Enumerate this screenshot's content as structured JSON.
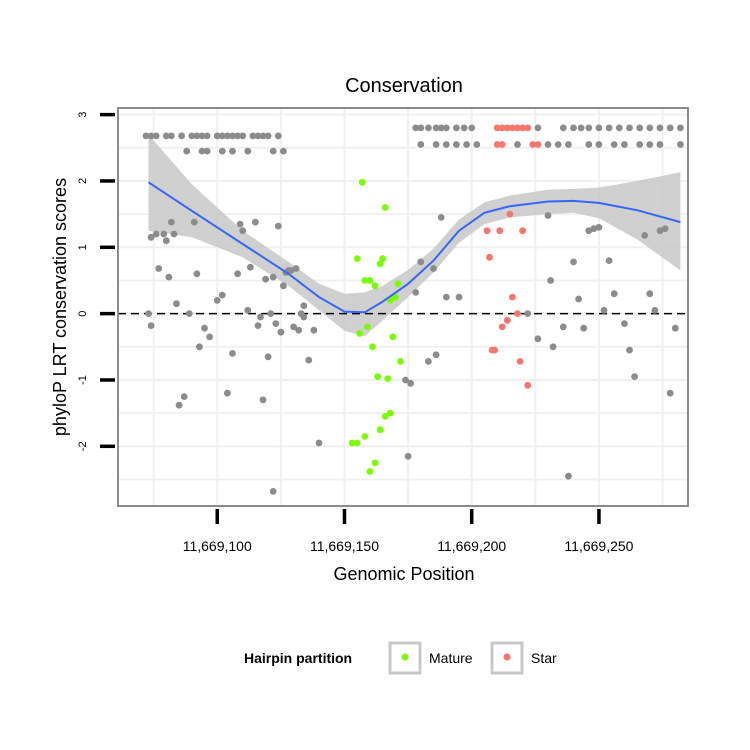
{
  "chart_data": {
    "type": "scatter",
    "title": "Conservation",
    "xlabel": "Genomic Position",
    "ylabel": "phyloP LRT conservation scores",
    "xlim": [
      11669061,
      11669285
    ],
    "ylim": [
      -2.9,
      3.1
    ],
    "x_ticks": [
      11669100,
      11669150,
      11669200,
      11669250
    ],
    "x_tick_labels": [
      "11,669,100",
      "11,669,150",
      "11,669,200",
      "11,669,250"
    ],
    "y_ticks": [
      -2,
      -1,
      0,
      1,
      2,
      3
    ],
    "y_tick_labels": [
      "-2",
      "-1",
      "0",
      "1",
      "2",
      "3"
    ],
    "reference_line": {
      "y": 0,
      "style": "dashed"
    },
    "legend": {
      "title": "Hairpin partition",
      "position": "bottom",
      "entries": [
        {
          "label": "Mature",
          "color": "#7cfc00"
        },
        {
          "label": "Star",
          "color": "#f8766d"
        }
      ]
    },
    "colors": {
      "other": "#8c8c8c",
      "mature": "#7cfc00",
      "star": "#f8766d",
      "smooth_line": "#3366ff",
      "confidence_band": "#c8c8c8",
      "panel_border": "#8c8c8c"
    },
    "smooth": {
      "x": [
        11669073,
        11669090,
        11669110,
        11669128,
        11669140,
        11669150,
        11669158,
        11669165,
        11669175,
        11669185,
        11669195,
        11669205,
        11669215,
        11669230,
        11669240,
        11669250,
        11669265,
        11669282
      ],
      "y": [
        1.98,
        1.55,
        1.05,
        0.6,
        0.25,
        0.03,
        0.02,
        0.18,
        0.45,
        0.8,
        1.25,
        1.52,
        1.62,
        1.69,
        1.7,
        1.67,
        1.56,
        1.38
      ],
      "upper": [
        2.7,
        1.95,
        1.25,
        0.78,
        0.45,
        0.3,
        0.32,
        0.42,
        0.66,
        0.98,
        1.42,
        1.68,
        1.78,
        1.87,
        1.88,
        1.9,
        2.0,
        2.13
      ],
      "lower": [
        1.25,
        1.15,
        0.85,
        0.42,
        0.05,
        -0.26,
        -0.34,
        -0.1,
        0.25,
        0.62,
        1.07,
        1.35,
        1.45,
        1.5,
        1.52,
        1.44,
        1.12,
        0.65
      ]
    },
    "series": [
      {
        "name": "Other",
        "points": [
          [
            11669072,
            2.68
          ],
          [
            11669074,
            2.68
          ],
          [
            11669076,
            2.68
          ],
          [
            11669080,
            2.68
          ],
          [
            11669082,
            2.68
          ],
          [
            11669086,
            2.68
          ],
          [
            11669090,
            2.68
          ],
          [
            11669092,
            2.68
          ],
          [
            11669094,
            2.68
          ],
          [
            11669096,
            2.68
          ],
          [
            11669100,
            2.68
          ],
          [
            11669102,
            2.68
          ],
          [
            11669104,
            2.68
          ],
          [
            11669106,
            2.68
          ],
          [
            11669108,
            2.68
          ],
          [
            11669110,
            2.68
          ],
          [
            11669114,
            2.68
          ],
          [
            11669116,
            2.68
          ],
          [
            11669118,
            2.68
          ],
          [
            11669120,
            2.68
          ],
          [
            11669124,
            2.68
          ],
          [
            11669088,
            2.45
          ],
          [
            11669094,
            2.45
          ],
          [
            11669096,
            2.45
          ],
          [
            11669102,
            2.45
          ],
          [
            11669106,
            2.45
          ],
          [
            11669112,
            2.45
          ],
          [
            11669122,
            2.45
          ],
          [
            11669126,
            2.45
          ],
          [
            11669073,
            0.0
          ],
          [
            11669074,
            -0.18
          ],
          [
            11669074,
            1.15
          ],
          [
            11669076,
            1.2
          ],
          [
            11669077,
            0.68
          ],
          [
            11669079,
            1.2
          ],
          [
            11669080,
            1.1
          ],
          [
            11669081,
            0.55
          ],
          [
            11669082,
            1.38
          ],
          [
            11669083,
            1.2
          ],
          [
            11669084,
            0.15
          ],
          [
            11669085,
            -1.38
          ],
          [
            11669087,
            -1.25
          ],
          [
            11669089,
            0.0
          ],
          [
            11669091,
            1.38
          ],
          [
            11669092,
            0.6
          ],
          [
            11669093,
            -0.5
          ],
          [
            11669095,
            -0.22
          ],
          [
            11669097,
            -0.35
          ],
          [
            11669100,
            0.2
          ],
          [
            11669102,
            0.28
          ],
          [
            11669104,
            -1.2
          ],
          [
            11669106,
            -0.6
          ],
          [
            11669108,
            0.6
          ],
          [
            11669109,
            1.35
          ],
          [
            11669110,
            1.25
          ],
          [
            11669112,
            0.05
          ],
          [
            11669113,
            0.7
          ],
          [
            11669115,
            1.38
          ],
          [
            11669116,
            -0.18
          ],
          [
            11669117,
            -0.05
          ],
          [
            11669118,
            -1.3
          ],
          [
            11669119,
            0.52
          ],
          [
            11669120,
            -0.65
          ],
          [
            11669121,
            0.0
          ],
          [
            11669122,
            0.55
          ],
          [
            11669123,
            -0.15
          ],
          [
            11669124,
            1.32
          ],
          [
            11669125,
            -0.28
          ],
          [
            11669126,
            0.42
          ],
          [
            11669127,
            0.62
          ],
          [
            11669128,
            0.65
          ],
          [
            11669129,
            0.65
          ],
          [
            11669130,
            -0.2
          ],
          [
            11669131,
            0.68
          ],
          [
            11669132,
            -0.25
          ],
          [
            11669133,
            0.0
          ],
          [
            11669134,
            -0.05
          ],
          [
            11669136,
            -0.7
          ],
          [
            11669138,
            -0.25
          ],
          [
            11669140,
            -1.95
          ],
          [
            11669122,
            -2.68
          ],
          [
            11669134,
            0.12
          ],
          [
            11669174,
            -1.0
          ],
          [
            11669175,
            -2.15
          ],
          [
            11669176,
            -1.05
          ],
          [
            11669178,
            0.32
          ],
          [
            11669180,
            0.78
          ],
          [
            11669183,
            -0.72
          ],
          [
            11669185,
            0.68
          ],
          [
            11669186,
            -0.62
          ],
          [
            11669188,
            1.45
          ],
          [
            11669190,
            0.25
          ],
          [
            11669195,
            0.25
          ],
          [
            11669222,
            0.0
          ],
          [
            11669226,
            -0.38
          ],
          [
            11669230,
            1.48
          ],
          [
            11669231,
            0.5
          ],
          [
            11669232,
            -0.5
          ],
          [
            11669236,
            -0.2
          ],
          [
            11669238,
            -2.45
          ],
          [
            11669240,
            0.78
          ],
          [
            11669242,
            0.22
          ],
          [
            11669244,
            -0.22
          ],
          [
            11669246,
            1.25
          ],
          [
            11669248,
            1.28
          ],
          [
            11669250,
            1.3
          ],
          [
            11669252,
            0.05
          ],
          [
            11669254,
            0.8
          ],
          [
            11669256,
            0.3
          ],
          [
            11669260,
            -0.15
          ],
          [
            11669262,
            -0.55
          ],
          [
            11669264,
            -0.95
          ],
          [
            11669268,
            1.18
          ],
          [
            11669270,
            0.3
          ],
          [
            11669272,
            0.05
          ],
          [
            11669274,
            1.25
          ],
          [
            11669276,
            1.28
          ],
          [
            11669278,
            -1.2
          ],
          [
            11669280,
            -0.22
          ],
          [
            11669178,
            2.8
          ],
          [
            11669180,
            2.8
          ],
          [
            11669183,
            2.8
          ],
          [
            11669186,
            2.8
          ],
          [
            11669188,
            2.8
          ],
          [
            11669190,
            2.8
          ],
          [
            11669194,
            2.8
          ],
          [
            11669197,
            2.8
          ],
          [
            11669200,
            2.8
          ],
          [
            11669226,
            2.8
          ],
          [
            11669236,
            2.8
          ],
          [
            11669240,
            2.8
          ],
          [
            11669243,
            2.8
          ],
          [
            11669246,
            2.8
          ],
          [
            11669250,
            2.8
          ],
          [
            11669254,
            2.8
          ],
          [
            11669258,
            2.8
          ],
          [
            11669262,
            2.8
          ],
          [
            11669266,
            2.8
          ],
          [
            11669270,
            2.8
          ],
          [
            11669274,
            2.8
          ],
          [
            11669278,
            2.8
          ],
          [
            11669282,
            2.8
          ],
          [
            11669180,
            2.55
          ],
          [
            11669186,
            2.55
          ],
          [
            11669190,
            2.55
          ],
          [
            11669194,
            2.55
          ],
          [
            11669198,
            2.55
          ],
          [
            11669202,
            2.55
          ],
          [
            11669218,
            2.55
          ],
          [
            11669230,
            2.55
          ],
          [
            11669234,
            2.55
          ],
          [
            11669238,
            2.55
          ],
          [
            11669246,
            2.55
          ],
          [
            11669250,
            2.55
          ],
          [
            11669256,
            2.55
          ],
          [
            11669260,
            2.55
          ],
          [
            11669266,
            2.55
          ],
          [
            11669270,
            2.55
          ],
          [
            11669274,
            2.55
          ],
          [
            11669282,
            2.55
          ]
        ]
      },
      {
        "name": "Mature",
        "points": [
          [
            11669155,
            0.83
          ],
          [
            11669156,
            -0.3
          ],
          [
            11669157,
            1.98
          ],
          [
            11669158,
            0.5
          ],
          [
            11669159,
            -0.2
          ],
          [
            11669160,
            0.5
          ],
          [
            11669161,
            -0.5
          ],
          [
            11669162,
            0.42
          ],
          [
            11669163,
            -0.95
          ],
          [
            11669164,
            0.75
          ],
          [
            11669165,
            0.83
          ],
          [
            11669166,
            1.6
          ],
          [
            11669167,
            -0.98
          ],
          [
            11669168,
            0.2
          ],
          [
            11669169,
            -0.35
          ],
          [
            11669170,
            0.25
          ],
          [
            11669171,
            0.45
          ],
          [
            11669172,
            -0.72
          ],
          [
            11669153,
            -1.95
          ],
          [
            11669155,
            -1.95
          ],
          [
            11669158,
            -1.85
          ],
          [
            11669160,
            -2.38
          ],
          [
            11669162,
            -2.25
          ],
          [
            11669164,
            -1.75
          ],
          [
            11669166,
            -1.55
          ],
          [
            11669168,
            -1.5
          ]
        ]
      },
      {
        "name": "Star",
        "points": [
          [
            11669206,
            1.25
          ],
          [
            11669207,
            0.85
          ],
          [
            11669208,
            -0.55
          ],
          [
            11669209,
            -0.55
          ],
          [
            11669211,
            1.25
          ],
          [
            11669212,
            -0.2
          ],
          [
            11669214,
            -0.1
          ],
          [
            11669215,
            1.5
          ],
          [
            11669216,
            0.25
          ],
          [
            11669218,
            0.0
          ],
          [
            11669219,
            -0.72
          ],
          [
            11669220,
            1.25
          ],
          [
            11669222,
            -1.08
          ],
          [
            11669210,
            2.8
          ],
          [
            11669212,
            2.8
          ],
          [
            11669214,
            2.8
          ],
          [
            11669216,
            2.8
          ],
          [
            11669218,
            2.8
          ],
          [
            11669220,
            2.8
          ],
          [
            11669222,
            2.8
          ],
          [
            11669210,
            2.55
          ],
          [
            11669212,
            2.55
          ],
          [
            11669224,
            2.55
          ],
          [
            11669226,
            2.55
          ]
        ]
      }
    ]
  }
}
